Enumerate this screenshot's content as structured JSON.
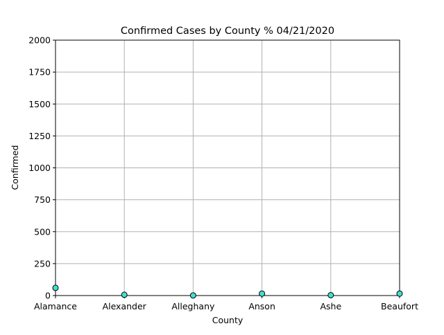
{
  "chart_data": {
    "type": "scatter",
    "title": "Confirmed Cases by County % 04/21/2020",
    "xlabel": "County",
    "ylabel": "Confirmed",
    "categories": [
      "Alamance",
      "Alexander",
      "Alleghany",
      "Anson",
      "Ashe",
      "Beaufort"
    ],
    "values": [
      60,
      6,
      1,
      15,
      3,
      15
    ],
    "ylim": [
      0,
      2000
    ],
    "yticks": [
      0,
      250,
      500,
      750,
      1000,
      1250,
      1500,
      1750,
      2000
    ],
    "grid": true,
    "marker_color": "#40e0d0",
    "marker_edge_color": "#000000",
    "grid_color": "#b0b0b0"
  }
}
